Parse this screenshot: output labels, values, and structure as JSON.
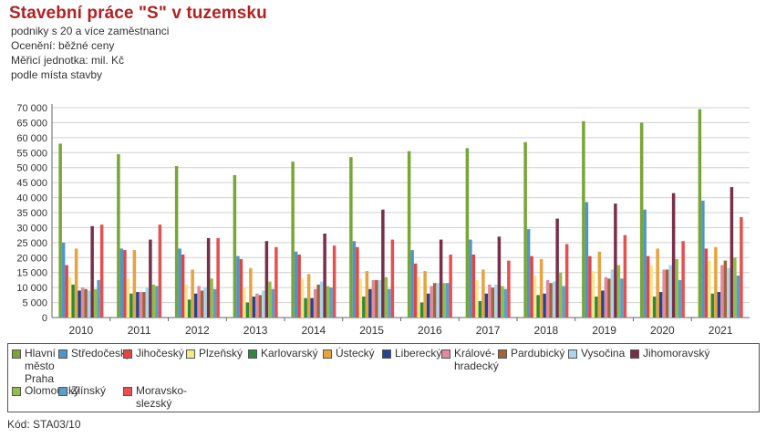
{
  "header": {
    "title": "Stavební práce \"S\" v tuzemsku",
    "line1": "podniky s 20 a více zaměstnanci",
    "line2": "Ocenění: běžné ceny",
    "line3": "Měřicí jednotka: mil. Kč",
    "line4": "podle místa stavby"
  },
  "footer": {
    "code": "Kód: STA03/10"
  },
  "chart_data": {
    "type": "bar",
    "categories": [
      "2010",
      "2011",
      "2012",
      "2013",
      "2014",
      "2015",
      "2016",
      "2017",
      "2018",
      "2019",
      "2020",
      "2021"
    ],
    "yticks": [
      "0",
      "5 000",
      "10 000",
      "15 000",
      "20 000",
      "25 000",
      "30 000",
      "35 000",
      "40 000",
      "45 000",
      "50 000",
      "55 000",
      "60 000",
      "65 000",
      "70 000"
    ],
    "ylim": [
      0,
      70000
    ],
    "grid": true,
    "legend_position": "bottom",
    "series": [
      {
        "name": "Hlavní město Praha",
        "color": "#78a636",
        "values": [
          58000,
          54500,
          50500,
          47500,
          52000,
          53500,
          55500,
          56500,
          58500,
          65500,
          65000,
          69500
        ]
      },
      {
        "name": "Středočeský",
        "color": "#4f95c7",
        "values": [
          25000,
          23000,
          23000,
          20500,
          22000,
          25500,
          22500,
          26000,
          29500,
          38500,
          36000,
          39000
        ]
      },
      {
        "name": "Jihočeský",
        "color": "#e04646",
        "values": [
          17500,
          22500,
          21000,
          19500,
          21000,
          23500,
          18000,
          21000,
          20500,
          20500,
          20500,
          23000
        ]
      },
      {
        "name": "Plzeňský",
        "color": "#f5e88a",
        "values": [
          13500,
          13000,
          11000,
          10000,
          13000,
          13000,
          13500,
          12500,
          14000,
          15500,
          17500,
          19000
        ]
      },
      {
        "name": "Karlovarský",
        "color": "#2e8a3a",
        "values": [
          11000,
          8000,
          6000,
          5000,
          6500,
          7000,
          5000,
          5500,
          7500,
          7000,
          7000,
          8000
        ]
      },
      {
        "name": "Ústecký",
        "color": "#e7a33e",
        "values": [
          23000,
          22500,
          16000,
          16500,
          14500,
          15500,
          15500,
          16000,
          19500,
          22000,
          23000,
          23500
        ]
      },
      {
        "name": "Liberecký",
        "color": "#23478a",
        "values": [
          9000,
          8500,
          8000,
          7000,
          6500,
          9500,
          8000,
          8000,
          8000,
          9000,
          8500,
          8500
        ]
      },
      {
        "name": "Královéhradecký",
        "color": "#e08a9e",
        "values": [
          10000,
          8500,
          10500,
          8000,
          9500,
          12500,
          10500,
          11000,
          12500,
          13500,
          16000,
          17500
        ]
      },
      {
        "name": "Pardubický",
        "color": "#a5623a",
        "values": [
          9500,
          8500,
          9000,
          7500,
          11000,
          12500,
          11500,
          10000,
          11500,
          13000,
          16000,
          19000
        ]
      },
      {
        "name": "Vysočina",
        "color": "#a9d6ea",
        "values": [
          9000,
          10000,
          10000,
          9000,
          12000,
          12500,
          11500,
          11000,
          12000,
          16000,
          17500,
          16500
        ]
      },
      {
        "name": "Jihomoravský",
        "color": "#7a2e4a",
        "values": [
          30500,
          26000,
          26500,
          25500,
          28000,
          36000,
          26000,
          27000,
          33000,
          38000,
          41500,
          43500
        ]
      },
      {
        "name": "Olomoucký",
        "color": "#8fbf46",
        "values": [
          9500,
          11000,
          13000,
          12000,
          10500,
          13500,
          11500,
          10500,
          15000,
          17500,
          19500,
          20000
        ]
      },
      {
        "name": "Zlínský",
        "color": "#5a9fc9",
        "values": [
          12500,
          10500,
          9500,
          9500,
          10000,
          9500,
          11500,
          9500,
          10500,
          13000,
          12500,
          14000
        ]
      },
      {
        "name": "Moravskoslezský",
        "color": "#e65050",
        "values": [
          31000,
          31000,
          26500,
          23500,
          24000,
          26000,
          21000,
          19000,
          24500,
          27500,
          25500,
          33500
        ]
      }
    ]
  },
  "legend_labels": [
    [
      "Hlavní",
      "město",
      "Praha"
    ],
    [
      "Středočeský"
    ],
    [
      "Jihočeský"
    ],
    [
      "Plzeňský"
    ],
    [
      "Karlovarský"
    ],
    [
      "Ústecký"
    ],
    [
      "Liberecký"
    ],
    [
      "Králové-",
      "hradecký"
    ],
    [
      "Pardubický"
    ],
    [
      "Vysočina"
    ],
    [
      "Jihomoravský"
    ],
    [
      "Olomoucký"
    ],
    [
      "Zlínský"
    ],
    [
      "Moravsko-",
      "slezský"
    ]
  ]
}
